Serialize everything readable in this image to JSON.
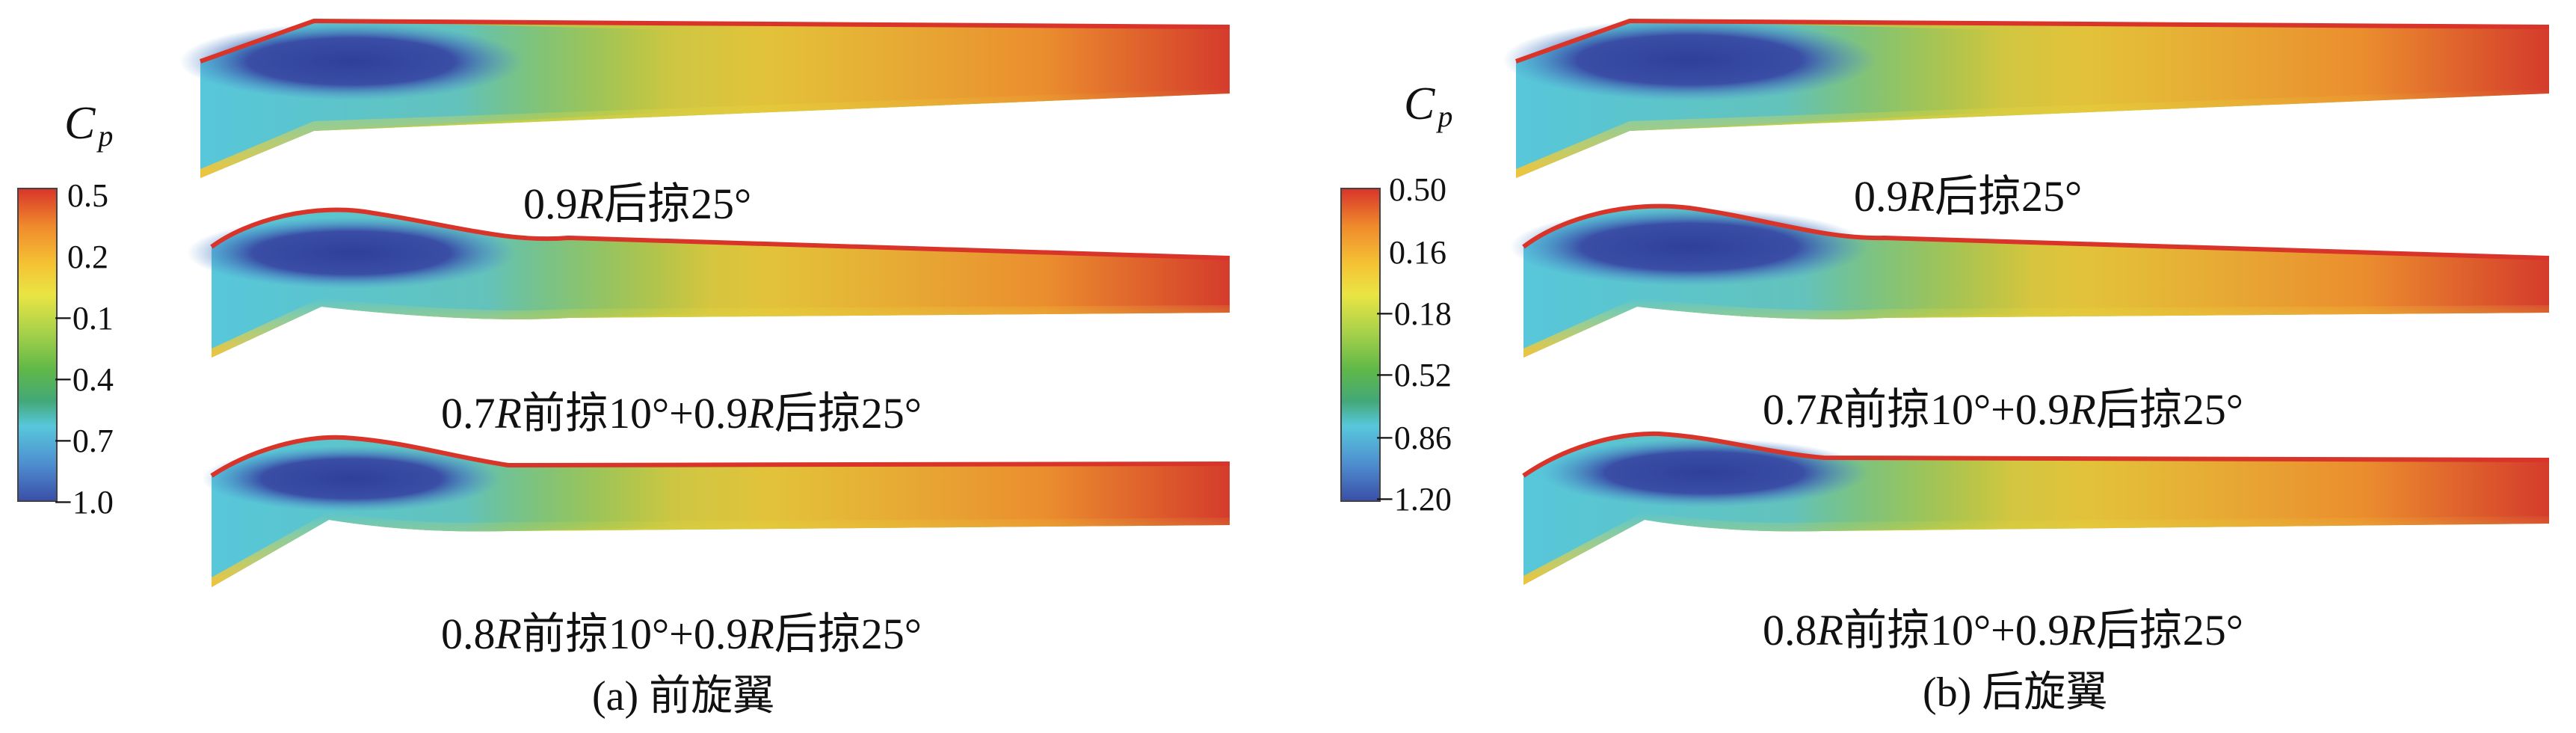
{
  "figure": {
    "panels": [
      {
        "id": "a",
        "caption": "(a) 前旋翼",
        "colorbar": {
          "title_main": "C",
          "title_sub": "p",
          "ticks": [
            "0.5",
            "0.2",
            "−0.1",
            "−0.4",
            "−0.7",
            "−1.0"
          ],
          "range": [
            -1.0,
            0.5
          ],
          "colors": [
            "#d8342a",
            "#f08a2c",
            "#f5c234",
            "#e9e543",
            "#a8d14a",
            "#5fb848",
            "#43a878",
            "#58c7db",
            "#4e8fd0",
            "#3a4ea6"
          ]
        },
        "blades": [
          {
            "caption_prefix": "0.9",
            "r1": "R",
            "caption_suffix": "后掠25°"
          },
          {
            "caption_prefix": "0.7",
            "r1": "R",
            "caption_mid": "前掠10°+0.9",
            "r2": "R",
            "caption_suffix": "后掠25°"
          },
          {
            "caption_prefix": "0.8",
            "r1": "R",
            "caption_mid": "前掠10°+0.9",
            "r2": "R",
            "caption_suffix": "后掠25°"
          }
        ]
      },
      {
        "id": "b",
        "caption": "(b) 后旋翼",
        "colorbar": {
          "title_main": "C",
          "title_sub": "p",
          "ticks": [
            "0.50",
            "0.16",
            "−0.18",
            "−0.52",
            "−0.86",
            "−1.20"
          ],
          "range": [
            -1.2,
            0.5
          ],
          "colors": [
            "#d8342a",
            "#f08a2c",
            "#f5c234",
            "#e9e543",
            "#a8d14a",
            "#5fb848",
            "#43a878",
            "#58c7db",
            "#4e8fd0",
            "#3a4ea6"
          ]
        },
        "blades": [
          {
            "caption_prefix": "0.9",
            "r1": "R",
            "caption_suffix": "后掠25°"
          },
          {
            "caption_prefix": "0.7",
            "r1": "R",
            "caption_mid": "前掠10°+0.9",
            "r2": "R",
            "caption_suffix": "后掠25°"
          },
          {
            "caption_prefix": "0.8",
            "r1": "R",
            "caption_mid": "前掠10°+0.9",
            "r2": "R",
            "caption_suffix": "后掠25°"
          }
        ]
      }
    ]
  }
}
